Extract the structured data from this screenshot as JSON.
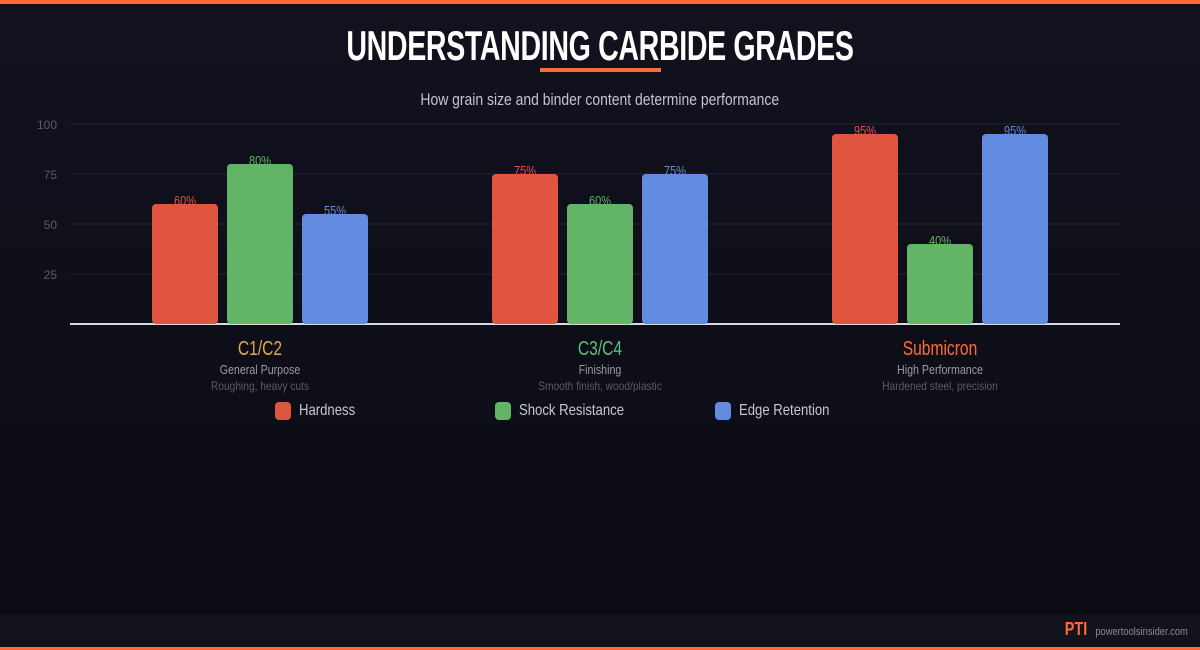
{
  "header": {
    "title": "UNDERSTANDING CARBIDE GRADES",
    "subtitle": "How grain size and binder content determine performance"
  },
  "chart_data": {
    "type": "bar",
    "ylim": [
      0,
      100
    ],
    "yticks": [
      "25",
      "50",
      "75",
      "100"
    ],
    "grid": true,
    "categories": [
      {
        "name": "C1/C2",
        "sub": "General Purpose",
        "desc": "Roughing, heavy cuts",
        "color": "#e0a94a"
      },
      {
        "name": "C3/C4",
        "sub": "Finishing",
        "desc": "Smooth finish, wood/plastic",
        "color": "#5fbf7a"
      },
      {
        "name": "Submicron",
        "sub": "High Performance",
        "desc": "Hardened steel, precision",
        "color": "#ff6b35"
      }
    ],
    "series": [
      {
        "name": "Hardness",
        "color": "#e05540",
        "values": [
          60,
          75,
          95
        ]
      },
      {
        "name": "Shock Resistance",
        "color": "#62b566",
        "values": [
          80,
          60,
          40
        ]
      },
      {
        "name": "Edge Retention",
        "color": "#628ce0",
        "values": [
          55,
          75,
          95
        ]
      }
    ],
    "value_suffix": "%",
    "legend": "bottom"
  },
  "footer": {
    "logo": "PTI",
    "site": "powertoolsinsider.com"
  }
}
